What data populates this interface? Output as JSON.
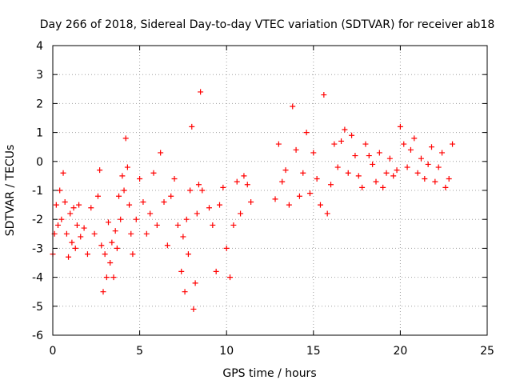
{
  "chart_data": {
    "type": "scatter",
    "title": "Day 266 of 2018, Sidereal Day-to-day VTEC variation (SDTVAR) for receiver ab18",
    "xlabel": "GPS time / hours",
    "ylabel": "SDTVAR / TECUs",
    "xlim": [
      0,
      25
    ],
    "ylim": [
      -6,
      4
    ],
    "xticks": [
      0,
      5,
      10,
      15,
      20,
      25
    ],
    "yticks": [
      -6,
      -5,
      -4,
      -3,
      -2,
      -1,
      0,
      1,
      2,
      3,
      4
    ],
    "xtick_labels": [
      "0",
      "5",
      "10",
      "15",
      "20",
      "25"
    ],
    "ytick_labels": [
      "-6",
      "-5",
      "-4",
      "-3",
      "-2",
      "-1",
      "0",
      "1",
      "2",
      "3",
      "4"
    ],
    "grid": true,
    "marker": "+",
    "color": "#ff0000",
    "series": [
      {
        "name": "SDTVAR",
        "x": [
          0.0,
          0.1,
          0.2,
          0.3,
          0.4,
          0.5,
          0.6,
          0.7,
          0.8,
          0.9,
          1.0,
          1.1,
          1.2,
          1.3,
          1.4,
          1.5,
          1.6,
          1.8,
          2.0,
          2.2,
          2.4,
          2.6,
          2.7,
          2.8,
          2.9,
          3.0,
          3.1,
          3.2,
          3.3,
          3.4,
          3.5,
          3.6,
          3.7,
          3.8,
          3.9,
          4.0,
          4.1,
          4.2,
          4.3,
          4.4,
          4.5,
          4.6,
          4.8,
          5.0,
          5.2,
          5.4,
          5.6,
          5.8,
          6.0,
          6.2,
          6.4,
          6.6,
          6.8,
          7.0,
          7.2,
          7.4,
          7.5,
          7.6,
          7.7,
          7.8,
          7.9,
          8.0,
          8.1,
          8.2,
          8.3,
          8.4,
          8.5,
          8.6,
          9.0,
          9.2,
          9.4,
          9.6,
          9.8,
          10.0,
          10.2,
          10.4,
          10.6,
          10.8,
          11.0,
          11.2,
          11.4,
          12.8,
          13.0,
          13.2,
          13.4,
          13.6,
          13.8,
          14.0,
          14.2,
          14.4,
          14.6,
          14.8,
          15.0,
          15.2,
          15.4,
          15.6,
          15.8,
          16.0,
          16.2,
          16.4,
          16.6,
          16.8,
          17.0,
          17.2,
          17.4,
          17.6,
          17.8,
          18.0,
          18.2,
          18.4,
          18.6,
          18.8,
          19.0,
          19.2,
          19.4,
          19.6,
          19.8,
          20.0,
          20.2,
          20.4,
          20.6,
          20.8,
          21.0,
          21.2,
          21.4,
          21.6,
          21.8,
          22.0,
          22.2,
          22.4,
          22.6,
          22.8,
          23.0
        ],
        "y": [
          -3.2,
          -2.5,
          -1.5,
          -2.2,
          -1.0,
          -2.0,
          -0.4,
          -1.4,
          -2.5,
          -3.3,
          -1.8,
          -2.8,
          -1.6,
          -3.0,
          -2.2,
          -1.5,
          -2.6,
          -2.3,
          -3.2,
          -1.6,
          -2.5,
          -1.2,
          -0.3,
          -2.9,
          -4.5,
          -3.2,
          -4.0,
          -2.1,
          -3.5,
          -2.8,
          -4.0,
          -2.4,
          -3.0,
          -1.2,
          -2.0,
          -0.5,
          -1.0,
          0.8,
          -0.2,
          -1.5,
          -2.5,
          -3.2,
          -2.0,
          -0.6,
          -1.4,
          -2.5,
          -1.8,
          -0.4,
          -2.2,
          0.3,
          -1.4,
          -2.9,
          -1.2,
          -0.6,
          -2.2,
          -3.8,
          -2.6,
          -4.5,
          -2.0,
          -3.2,
          -1.0,
          1.2,
          -5.1,
          -4.2,
          -1.8,
          -0.8,
          2.4,
          -1.0,
          -1.6,
          -2.2,
          -3.8,
          -1.5,
          -0.9,
          -3.0,
          -4.0,
          -2.2,
          -0.7,
          -1.8,
          -0.5,
          -0.8,
          -1.4,
          -1.3,
          0.6,
          -0.7,
          -0.3,
          -1.5,
          1.9,
          0.4,
          -1.2,
          -0.4,
          1.0,
          -1.1,
          0.3,
          -0.6,
          -1.5,
          2.3,
          -1.8,
          -0.8,
          0.6,
          -0.2,
          0.7,
          1.1,
          -0.4,
          0.9,
          0.2,
          -0.5,
          -0.9,
          0.6,
          0.2,
          -0.1,
          -0.7,
          0.3,
          -0.9,
          -0.4,
          0.1,
          -0.5,
          -0.3,
          1.2,
          0.6,
          -0.2,
          0.4,
          0.8,
          -0.4,
          0.1,
          -0.6,
          -0.1,
          0.5,
          -0.7,
          -0.2,
          0.3,
          -0.9,
          -0.6,
          0.6
        ]
      }
    ]
  }
}
